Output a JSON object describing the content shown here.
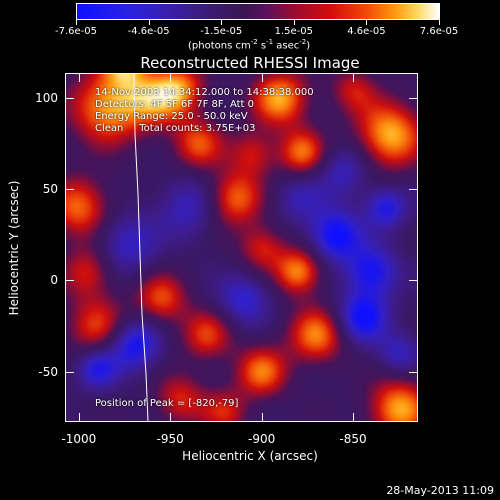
{
  "colorbar": {
    "tick_labels": [
      "-7.6e-05",
      "-4.6e-05",
      "-1.5e-05",
      "1.5e-05",
      "4.6e-05",
      "7.6e-05"
    ],
    "units_prefix": "(photons cm",
    "units_exp1": "-2",
    "units_mid1": " s",
    "units_exp2": "-1",
    "units_mid2": " asec",
    "units_exp3": "-2",
    "units_suffix": ")"
  },
  "plot": {
    "title": "Reconstructed RHESSI Image",
    "info_time": "14-Nov-2003 14:34:12.000 to 14:38:38.000",
    "info_detectors": "Detectors: 4F 5F 6F 7F 8F, Att 0",
    "info_energy": "Energy Range: 25.0 - 50.0 keV",
    "info_method": "Clean     Total counts: 3.75E+03",
    "peak_text": "Position of Peak = [-820,-79]",
    "xlabel": "Heliocentric X (arcsec)",
    "ylabel": "Heliocentric Y (arcsec)",
    "x_tick_labels": [
      "-1000",
      "-950",
      "-900",
      "-850"
    ],
    "y_tick_labels": [
      "100",
      "50",
      "0",
      "-50"
    ]
  },
  "footer": {
    "timestamp": "28-May-2013 11:09"
  },
  "chart_data": {
    "type": "heatmap",
    "title": "Reconstructed RHESSI Image",
    "xlabel": "Heliocentric X (arcsec)",
    "ylabel": "Heliocentric Y (arcsec)",
    "xlim": [
      -1007,
      -815
    ],
    "ylim": [
      -77,
      113
    ],
    "color_scale": {
      "min": -7.6e-05,
      "max": 7.6e-05
    },
    "peak": [
      -820,
      -79
    ],
    "sources": [
      {
        "x": -985,
        "y": 95,
        "v": 0.95,
        "r": 14
      },
      {
        "x": -1000,
        "y": 40,
        "v": 0.8,
        "r": 12
      },
      {
        "x": -995,
        "y": 5,
        "v": 0.6,
        "r": 10
      },
      {
        "x": -990,
        "y": -25,
        "v": 0.65,
        "r": 12
      },
      {
        "x": -960,
        "y": 100,
        "v": 0.7,
        "r": 12
      },
      {
        "x": -945,
        "y": 105,
        "v": 0.75,
        "r": 10
      },
      {
        "x": -935,
        "y": 75,
        "v": 0.7,
        "r": 10
      },
      {
        "x": -915,
        "y": 45,
        "v": 0.8,
        "r": 11
      },
      {
        "x": -905,
        "y": 70,
        "v": 0.55,
        "r": 9
      },
      {
        "x": -890,
        "y": 100,
        "v": 0.95,
        "r": 11
      },
      {
        "x": -878,
        "y": 70,
        "v": 0.8,
        "r": 9
      },
      {
        "x": -900,
        "y": 18,
        "v": 0.6,
        "r": 9
      },
      {
        "x": -880,
        "y": 5,
        "v": 0.9,
        "r": 9
      },
      {
        "x": -870,
        "y": -30,
        "v": 0.85,
        "r": 11
      },
      {
        "x": -900,
        "y": -50,
        "v": 0.8,
        "r": 10
      },
      {
        "x": -955,
        "y": -10,
        "v": 0.7,
        "r": 10
      },
      {
        "x": -930,
        "y": -30,
        "v": 0.65,
        "r": 10
      },
      {
        "x": -945,
        "y": -65,
        "v": 0.6,
        "r": 10
      },
      {
        "x": -920,
        "y": -72,
        "v": 0.55,
        "r": 9
      },
      {
        "x": -830,
        "y": 80,
        "v": 1.0,
        "r": 13
      },
      {
        "x": -825,
        "y": -70,
        "v": 0.95,
        "r": 12
      },
      {
        "x": -850,
        "y": 105,
        "v": 0.5,
        "r": 9
      },
      {
        "x": -975,
        "y": 120,
        "v": 0.8,
        "r": 9
      },
      {
        "x": -970,
        "y": -35,
        "v": -0.85,
        "r": 10
      },
      {
        "x": -990,
        "y": -48,
        "v": -0.7,
        "r": 8
      },
      {
        "x": -975,
        "y": 20,
        "v": -0.55,
        "r": 12
      },
      {
        "x": -940,
        "y": 40,
        "v": -0.5,
        "r": 12
      },
      {
        "x": -860,
        "y": 25,
        "v": -0.9,
        "r": 10
      },
      {
        "x": -840,
        "y": 5,
        "v": -0.8,
        "r": 10
      },
      {
        "x": -845,
        "y": -20,
        "v": -0.85,
        "r": 10
      },
      {
        "x": -832,
        "y": 40,
        "v": -0.7,
        "r": 8
      },
      {
        "x": -855,
        "y": 60,
        "v": -0.5,
        "r": 10
      },
      {
        "x": -910,
        "y": -10,
        "v": -0.6,
        "r": 10
      },
      {
        "x": -880,
        "y": 45,
        "v": -0.4,
        "r": 10
      },
      {
        "x": -825,
        "y": -40,
        "v": -0.5,
        "r": 8
      }
    ]
  }
}
